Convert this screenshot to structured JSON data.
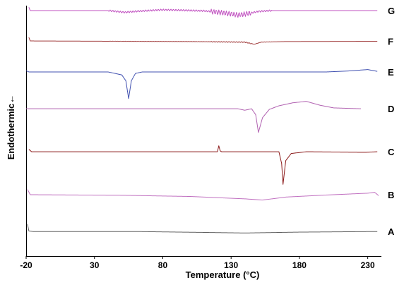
{
  "chart_data": {
    "type": "line",
    "xlabel": "Temperature (°C)",
    "ylabel": "Endothermic←",
    "xlim": [
      -20,
      240
    ],
    "x_ticks": [
      {
        "value": -20,
        "label": "-20"
      },
      {
        "value": 30,
        "label": "30"
      },
      {
        "value": 80,
        "label": "80"
      },
      {
        "value": 130,
        "label": "130"
      },
      {
        "value": 180,
        "label": "180"
      },
      {
        "value": 230,
        "label": "230"
      }
    ],
    "grid": false,
    "legend": "none",
    "series": [
      {
        "name": "G",
        "color": "#c050c0",
        "offset": 2.0,
        "noise": 0.28,
        "points": [
          [
            -18,
            1.1
          ],
          [
            -17,
            0
          ],
          [
            40,
            0
          ],
          [
            52,
            -0.6
          ],
          [
            62,
            -0.2
          ],
          [
            80,
            0.25
          ],
          [
            95,
            0.1
          ],
          [
            110,
            -0.1
          ],
          [
            125,
            -0.8
          ],
          [
            135,
            -1.5
          ],
          [
            140,
            -1.2
          ],
          [
            150,
            -0.3
          ],
          [
            160,
            0
          ],
          [
            190,
            0
          ],
          [
            237,
            0
          ]
        ]
      },
      {
        "name": "F",
        "color": "#a03a3a",
        "offset": 1.75,
        "noise": 0.05,
        "points": [
          [
            -18,
            1.3
          ],
          [
            -17,
            0.1
          ],
          [
            40,
            0
          ],
          [
            100,
            -0.1
          ],
          [
            140,
            -0.3
          ],
          [
            147,
            -1.0
          ],
          [
            152,
            -0.3
          ],
          [
            170,
            -0.1
          ],
          [
            237,
            0
          ]
        ]
      },
      {
        "name": "E",
        "color": "#4050b0",
        "offset": 1.5,
        "noise": 0,
        "points": [
          [
            -20,
            0.4
          ],
          [
            -18,
            0
          ],
          [
            40,
            0
          ],
          [
            50,
            -1.0
          ],
          [
            53,
            -3.0
          ],
          [
            55,
            -9.0
          ],
          [
            57,
            -3.0
          ],
          [
            60,
            -0.5
          ],
          [
            65,
            0
          ],
          [
            200,
            0
          ],
          [
            215,
            0.3
          ],
          [
            230,
            0.8
          ],
          [
            237,
            0.2
          ]
        ]
      },
      {
        "name": "D",
        "color": "#b060b0",
        "offset": 1.2,
        "noise": 0,
        "points": [
          [
            -20,
            0
          ],
          [
            135,
            0
          ],
          [
            140,
            -0.5
          ],
          [
            145,
            0
          ],
          [
            148,
            -2.0
          ],
          [
            150,
            -8.0
          ],
          [
            153,
            -3.0
          ],
          [
            158,
            -0.2
          ],
          [
            165,
            1.0
          ],
          [
            175,
            2.0
          ],
          [
            185,
            2.5
          ],
          [
            195,
            1.2
          ],
          [
            205,
            0.3
          ],
          [
            225,
            0
          ]
        ]
      },
      {
        "name": "C",
        "color": "#8b1a1a",
        "offset": 0.85,
        "noise": 0,
        "points": [
          [
            -18,
            0.8
          ],
          [
            -16,
            0
          ],
          [
            120,
            0
          ],
          [
            121,
            2.0
          ],
          [
            122,
            0.3
          ],
          [
            123,
            0
          ],
          [
            165,
            0
          ],
          [
            167,
            -4.0
          ],
          [
            168,
            -11.0
          ],
          [
            170,
            -3.0
          ],
          [
            174,
            -0.6
          ],
          [
            185,
            0
          ],
          [
            228,
            -0.2
          ],
          [
            237,
            0
          ]
        ]
      },
      {
        "name": "B",
        "color": "#c070c0",
        "offset": 0.5,
        "noise": 0,
        "points": [
          [
            -19,
            1.8
          ],
          [
            -17,
            0
          ],
          [
            50,
            -0.2
          ],
          [
            100,
            -0.6
          ],
          [
            140,
            -1.4
          ],
          [
            153,
            -1.8
          ],
          [
            170,
            -0.8
          ],
          [
            200,
            -0.1
          ],
          [
            230,
            0.5
          ],
          [
            235,
            0.8
          ],
          [
            238,
            -0.3
          ]
        ]
      },
      {
        "name": "A",
        "color": "#606060",
        "offset": 0.2,
        "noise": 0,
        "points": [
          [
            -19,
            2.5
          ],
          [
            -18,
            0.2
          ],
          [
            -15,
            0
          ],
          [
            60,
            0
          ],
          [
            110,
            -0.3
          ],
          [
            140,
            -0.5
          ],
          [
            180,
            -0.2
          ],
          [
            237,
            0
          ]
        ]
      }
    ]
  }
}
